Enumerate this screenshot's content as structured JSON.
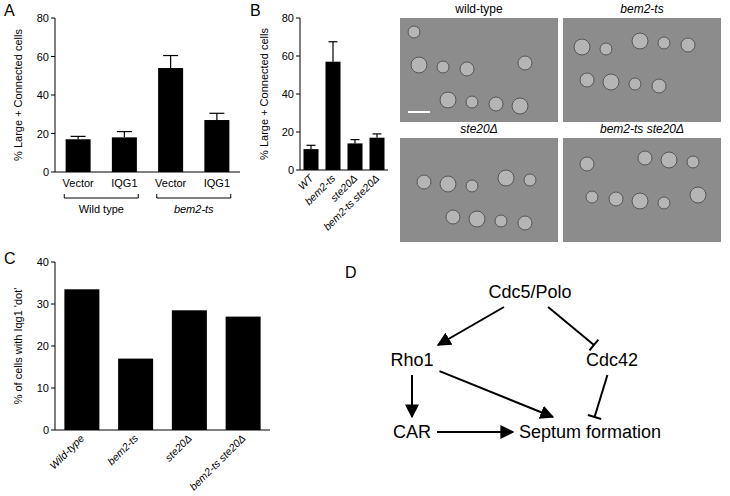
{
  "chart_data": [
    {
      "type": "bar",
      "title": "A",
      "y_label": "% Large + Connected cells",
      "categories": [
        "Vector",
        "IQG1",
        "Vector",
        "IQG1"
      ],
      "group_labels": [
        "Wild type",
        "bem2-ts"
      ],
      "values": [
        17,
        18,
        54,
        27
      ],
      "errors": [
        1.5,
        3,
        6.5,
        3.5
      ],
      "color": "#000000",
      "ylim": [
        0,
        80
      ],
      "yticks": [
        0,
        20,
        40,
        60,
        80
      ],
      "grid": false
    },
    {
      "type": "bar",
      "title": "B",
      "y_label": "% Large + Connected cells",
      "categories": [
        "WT",
        "bem2-ts",
        "ste20Δ",
        "bem2-ts ste20Δ"
      ],
      "values": [
        11,
        57,
        14,
        17
      ],
      "errors": [
        2,
        10.5,
        2,
        2
      ],
      "color": "#000000",
      "ylim": [
        0,
        80
      ],
      "yticks": [
        0,
        20,
        40,
        60,
        80
      ],
      "grid": false
    },
    {
      "type": "bar",
      "title": "C",
      "y_label": "% of cells with Iqg1 'dot'",
      "categories": [
        "Wild-type",
        "bem2-ts",
        "ste20Δ",
        "bem2-ts ste20Δ"
      ],
      "values": [
        33.5,
        17,
        28.5,
        27
      ],
      "color": "#000000",
      "ylim": [
        0,
        40
      ],
      "yticks": [
        0,
        10,
        20,
        30,
        40
      ],
      "grid": false
    }
  ],
  "micrographs": {
    "labels": [
      "wild-type",
      "bem2-ts",
      "ste20Δ",
      "bem2-ts ste20Δ"
    ]
  },
  "diagram": {
    "title": "D",
    "nodes": [
      {
        "label": "Cdc5/Polo"
      },
      {
        "label": "Rho1"
      },
      {
        "label": "Cdc42"
      },
      {
        "label": "CAR"
      },
      {
        "label": "Septum formation"
      }
    ],
    "edges": [
      {
        "from": 0,
        "to": 1,
        "type": "activates"
      },
      {
        "from": 0,
        "to": 2,
        "type": "inhibits"
      },
      {
        "from": 1,
        "to": 3,
        "type": "activates"
      },
      {
        "from": 1,
        "to": 4,
        "type": "activates"
      },
      {
        "from": 3,
        "to": 4,
        "type": "activates"
      },
      {
        "from": 2,
        "to": 4,
        "type": "inhibits"
      }
    ]
  }
}
